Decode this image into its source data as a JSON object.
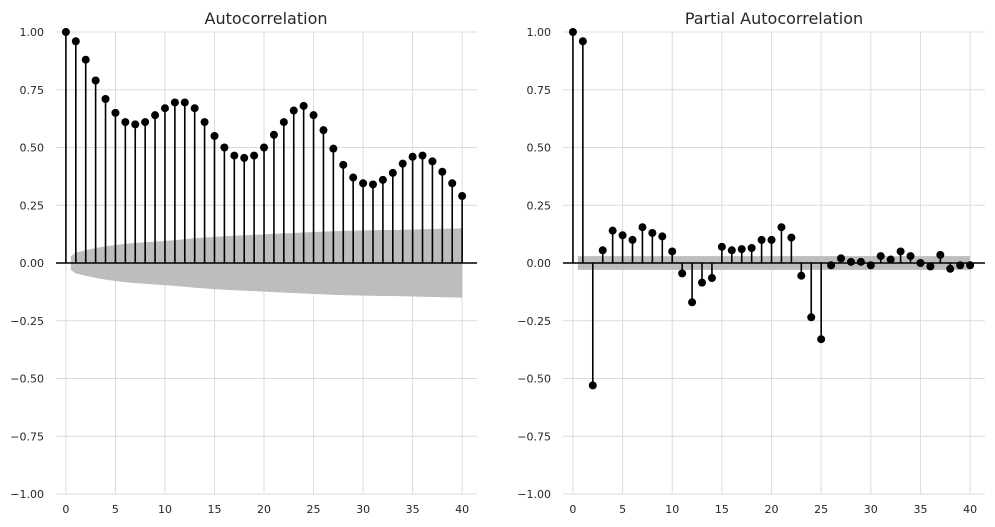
{
  "chart_data": [
    {
      "type": "stem",
      "title": "Autocorrelation",
      "xlim": [
        -1,
        41.5
      ],
      "ylim": [
        -1.0,
        1.0
      ],
      "x_ticks": [
        0,
        5,
        10,
        15,
        20,
        25,
        30,
        35,
        40
      ],
      "y_ticks": [
        -1.0,
        -0.75,
        -0.5,
        -0.25,
        0.0,
        0.25,
        0.5,
        0.75,
        1.0
      ],
      "x_tick_labels": [
        "0",
        "5",
        "10",
        "15",
        "20",
        "25",
        "30",
        "35",
        "40"
      ],
      "y_tick_labels": [
        "−1.00",
        "−0.75",
        "−0.50",
        "−0.25",
        "0.00",
        "0.25",
        "0.50",
        "0.75",
        "1.00"
      ],
      "grid": true,
      "lags": [
        0,
        1,
        2,
        3,
        4,
        5,
        6,
        7,
        8,
        9,
        10,
        11,
        12,
        13,
        14,
        15,
        16,
        17,
        18,
        19,
        20,
        21,
        22,
        23,
        24,
        25,
        26,
        27,
        28,
        29,
        30,
        31,
        32,
        33,
        34,
        35,
        36,
        37,
        38,
        39,
        40
      ],
      "values": [
        1.0,
        0.96,
        0.88,
        0.79,
        0.71,
        0.65,
        0.61,
        0.6,
        0.61,
        0.64,
        0.67,
        0.695,
        0.695,
        0.67,
        0.61,
        0.55,
        0.5,
        0.465,
        0.455,
        0.465,
        0.5,
        0.555,
        0.61,
        0.66,
        0.68,
        0.64,
        0.575,
        0.495,
        0.425,
        0.37,
        0.345,
        0.34,
        0.36,
        0.39,
        0.43,
        0.46,
        0.465,
        0.44,
        0.395,
        0.345,
        0.29
      ],
      "confidence_band": {
        "lags": [
          0.5,
          1,
          2,
          3,
          4,
          5,
          6,
          7,
          8,
          9,
          10,
          11,
          12,
          13,
          14,
          15,
          16,
          17,
          18,
          19,
          20,
          21,
          22,
          23,
          24,
          25,
          26,
          27,
          28,
          29,
          30,
          31,
          32,
          33,
          34,
          35,
          36,
          37,
          38,
          39,
          40
        ],
        "upper": [
          0.03,
          0.045,
          0.055,
          0.065,
          0.072,
          0.078,
          0.083,
          0.087,
          0.09,
          0.093,
          0.096,
          0.099,
          0.103,
          0.107,
          0.11,
          0.113,
          0.116,
          0.118,
          0.12,
          0.122,
          0.124,
          0.126,
          0.128,
          0.13,
          0.132,
          0.134,
          0.136,
          0.138,
          0.139,
          0.14,
          0.141,
          0.142,
          0.143,
          0.143,
          0.144,
          0.145,
          0.146,
          0.147,
          0.148,
          0.149,
          0.15
        ]
      }
    },
    {
      "type": "stem",
      "title": "Partial Autocorrelation",
      "xlim": [
        -1,
        41.5
      ],
      "ylim": [
        -1.0,
        1.0
      ],
      "x_ticks": [
        0,
        5,
        10,
        15,
        20,
        25,
        30,
        35,
        40
      ],
      "y_ticks": [
        -1.0,
        -0.75,
        -0.5,
        -0.25,
        0.0,
        0.25,
        0.5,
        0.75,
        1.0
      ],
      "x_tick_labels": [
        "0",
        "5",
        "10",
        "15",
        "20",
        "25",
        "30",
        "35",
        "40"
      ],
      "y_tick_labels": [
        "−1.00",
        "−0.75",
        "−0.50",
        "−0.25",
        "0.00",
        "0.25",
        "0.50",
        "0.75",
        "1.00"
      ],
      "grid": true,
      "lags": [
        0,
        1,
        2,
        3,
        4,
        5,
        6,
        7,
        8,
        9,
        10,
        11,
        12,
        13,
        14,
        15,
        16,
        17,
        18,
        19,
        20,
        21,
        22,
        23,
        24,
        25,
        26,
        27,
        28,
        29,
        30,
        31,
        32,
        33,
        34,
        35,
        36,
        37,
        38,
        39,
        40
      ],
      "values": [
        1.0,
        0.96,
        -0.53,
        0.055,
        0.14,
        0.12,
        0.1,
        0.155,
        0.13,
        0.115,
        0.05,
        -0.045,
        -0.17,
        -0.085,
        -0.065,
        0.07,
        0.055,
        0.06,
        0.065,
        0.1,
        0.1,
        0.155,
        0.11,
        -0.055,
        -0.235,
        -0.33,
        -0.01,
        0.02,
        0.005,
        0.005,
        -0.01,
        0.03,
        0.015,
        0.05,
        0.03,
        0.0,
        -0.015,
        0.035,
        -0.025,
        -0.01,
        -0.01
      ],
      "confidence_band": {
        "lags": [
          0.5,
          40
        ],
        "upper": [
          0.03,
          0.03
        ]
      }
    }
  ]
}
